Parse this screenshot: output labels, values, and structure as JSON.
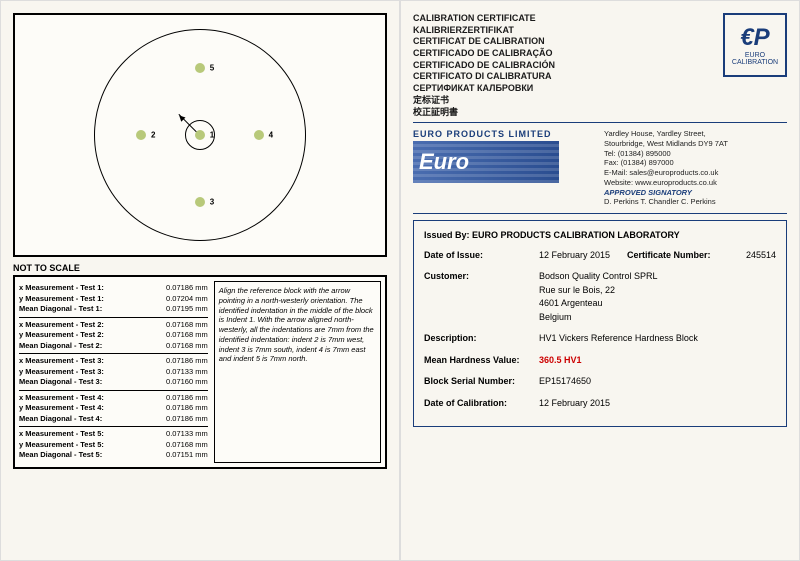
{
  "left": {
    "notToScale": "NOT TO SCALE",
    "points": [
      {
        "n": "1",
        "x": 50,
        "y": 50
      },
      {
        "n": "2",
        "x": 22,
        "y": 50
      },
      {
        "n": "3",
        "x": 50,
        "y": 82
      },
      {
        "n": "4",
        "x": 78,
        "y": 50
      },
      {
        "n": "5",
        "x": 50,
        "y": 18
      }
    ],
    "tests": [
      {
        "x": "0.07186 mm",
        "y": "0.07204 mm",
        "mean": "0.07195 mm"
      },
      {
        "x": "0.07168 mm",
        "y": "0.07168 mm",
        "mean": "0.07168 mm"
      },
      {
        "x": "0.07186 mm",
        "y": "0.07133 mm",
        "mean": "0.07160 mm"
      },
      {
        "x": "0.07186 mm",
        "y": "0.07186 mm",
        "mean": "0.07186 mm"
      },
      {
        "x": "0.07133 mm",
        "y": "0.07168 mm",
        "mean": "0.07151 mm"
      }
    ],
    "instructions": "Align the reference block with the arrow pointing in a north-westerly orientation. The identified indentation in the middle of the block is Indent 1. With the arrow aligned north-westerly, all the indentations are 7mm from the identified indentation: indent 2 is 7mm west, indent 3 is 7mm south, indent 4 is 7mm east and indent 5 is 7mm north."
  },
  "right": {
    "titles": [
      "CALIBRATION CERTIFICATE",
      "KALIBRIERZERTIFIKAT",
      "CERTIFICAT DE CALIBRATION",
      "CERTIFICADO DE CALIBRAÇÃO",
      "CERTIFICADO DE CALIBRACIÓN",
      "CERTIFICATO DI CALIBRATURA",
      "СЕРТИФИКАТ КАЛБРОВКИ",
      "定标证书",
      "校正証明書"
    ],
    "epLogoTop": "€P",
    "epLogoBottom": "EURO CALIBRATION",
    "companyTitle": "EURO PRODUCTS LIMITED",
    "euroLogo": "Euro",
    "address1": "Yardley House, Yardley Street,",
    "address2": "Stourbridge, West Midlands DY9 7AT",
    "tel": "Tel:   (01384) 895000",
    "fax": "Fax:  (01384) 897000",
    "email": "E-Mail: sales@europroducts.co.uk",
    "web": "Website: www.europroducts.co.uk",
    "approvedLabel": "APPROVED SIGNATORY",
    "signatories": "D. Perkins      T. Chandler      C. Perkins",
    "issuedBy": "Issued By: EURO PRODUCTS CALIBRATION LABORATORY",
    "dateIssueLbl": "Date of Issue:",
    "dateIssue": "12 February 2015",
    "certNumLbl": "Certificate Number:",
    "certNum": "245514",
    "customerLbl": "Customer:",
    "customer1": "Bodson Quality Control SPRL",
    "customer2": "Rue sur le Bois, 22",
    "customer3": "4601 Argenteau",
    "customer4": "Belgium",
    "descLbl": "Description:",
    "desc": "HV1  Vickers Reference Hardness Block",
    "meanLbl": "Mean Hardness Value:",
    "mean": "360.5 HV1",
    "serialLbl": "Block Serial Number:",
    "serial": "EP15174650",
    "calDateLbl": "Date of Calibration:",
    "calDate": "12 February 2015"
  }
}
